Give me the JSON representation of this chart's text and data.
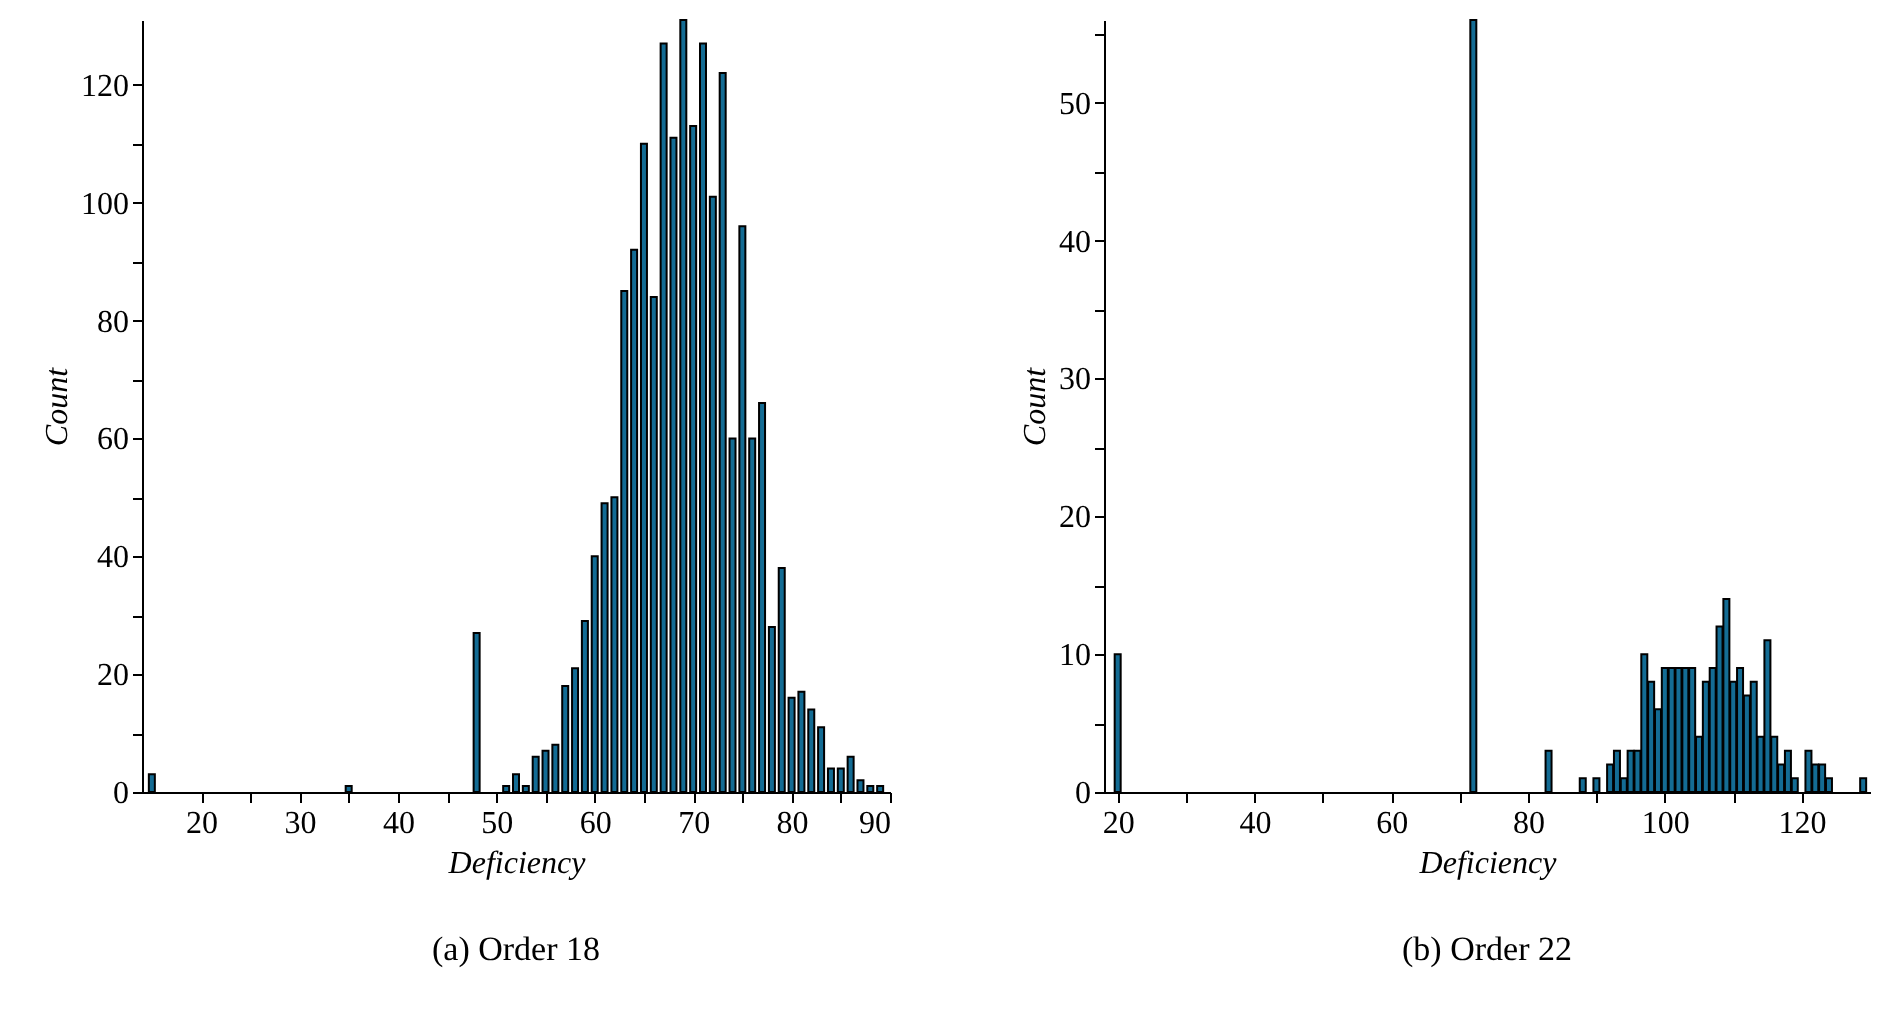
{
  "chart_data": [
    {
      "type": "bar",
      "title": "(a)  Order 18",
      "xlabel": "Deficiency",
      "ylabel": "Count",
      "color": "#146c94",
      "x": [
        15,
        35,
        48,
        51,
        52,
        53,
        54,
        55,
        56,
        57,
        58,
        59,
        60,
        61,
        62,
        63,
        64,
        65,
        66,
        67,
        68,
        69,
        70,
        71,
        72,
        73,
        74,
        75,
        76,
        77,
        78,
        79,
        80,
        81,
        82,
        83,
        84,
        85,
        86,
        87,
        88,
        89
      ],
      "values": [
        3,
        1,
        27,
        1,
        3,
        1,
        6,
        7,
        8,
        18,
        21,
        29,
        40,
        49,
        50,
        85,
        92,
        110,
        84,
        127,
        111,
        131,
        113,
        127,
        101,
        122,
        60,
        96,
        60,
        66,
        28,
        38,
        16,
        17,
        14,
        11,
        4,
        4,
        6,
        2,
        1,
        1
      ],
      "xlim": [
        14,
        90
      ],
      "xticks": [
        20,
        {
          "value": 25,
          "label": null
        },
        30,
        {
          "value": 35,
          "label": null
        },
        40,
        {
          "value": 45,
          "label": null
        },
        50,
        {
          "value": 55,
          "label": null
        },
        60,
        {
          "value": 65,
          "label": null
        },
        70,
        {
          "value": 75,
          "label": null
        },
        80,
        {
          "value": 85,
          "label": null
        },
        90
      ],
      "ylim": [
        0,
        131
      ],
      "yticks": [
        0,
        {
          "value": 10,
          "label": null
        },
        20,
        {
          "value": 30,
          "label": null
        },
        40,
        {
          "value": 50,
          "label": null
        },
        60,
        {
          "value": 70,
          "label": null
        },
        80,
        {
          "value": 90,
          "label": null
        },
        100,
        {
          "value": 110,
          "label": null
        },
        120
      ]
    },
    {
      "type": "bar",
      "title": "(b)  Order 22",
      "xlabel": "Deficiency",
      "ylabel": "Count",
      "color": "#146c94",
      "x": [
        20,
        72,
        83,
        88,
        90,
        92,
        93,
        94,
        95,
        96,
        97,
        98,
        99,
        100,
        101,
        102,
        103,
        104,
        105,
        106,
        107,
        108,
        109,
        110,
        111,
        112,
        113,
        114,
        115,
        116,
        117,
        118,
        119,
        121,
        122,
        123,
        124,
        129
      ],
      "values": [
        10,
        56,
        3,
        1,
        1,
        2,
        3,
        1,
        3,
        3,
        10,
        8,
        6,
        9,
        9,
        9,
        9,
        9,
        4,
        8,
        9,
        12,
        14,
        8,
        9,
        7,
        8,
        4,
        11,
        4,
        2,
        3,
        1,
        3,
        2,
        2,
        1,
        1
      ],
      "xlim": [
        18,
        130
      ],
      "xticks": [
        20,
        {
          "value": 30,
          "label": null
        },
        40,
        {
          "value": 50,
          "label": null
        },
        60,
        {
          "value": 70,
          "label": null
        },
        80,
        {
          "value": 90,
          "label": null
        },
        100,
        {
          "value": 110,
          "label": null
        },
        120
      ],
      "ylim": [
        0,
        56
      ],
      "yticks": [
        0,
        {
          "value": 5,
          "label": null
        },
        10,
        {
          "value": 15,
          "label": null
        },
        20,
        {
          "value": 25,
          "label": null
        },
        30,
        {
          "value": 35,
          "label": null
        },
        40,
        {
          "value": 45,
          "label": null
        },
        50,
        {
          "value": 55,
          "label": null
        }
      ]
    }
  ]
}
